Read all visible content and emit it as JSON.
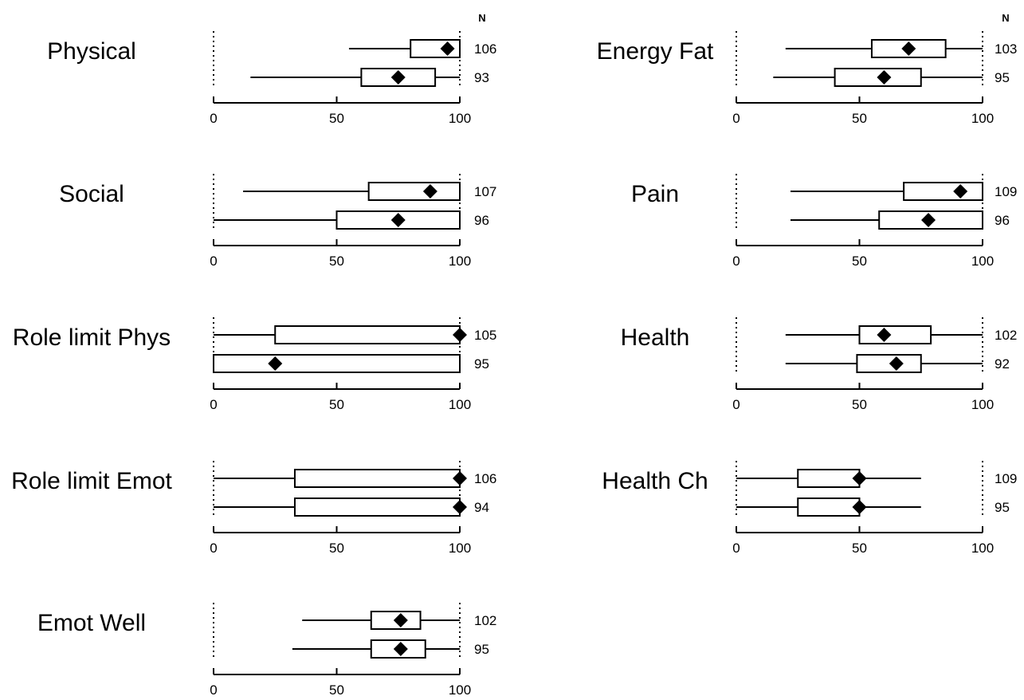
{
  "chart_data": {
    "type": "boxplot",
    "n_header": "N",
    "axis": {
      "range": [
        0,
        100
      ],
      "ticks": [
        "0",
        "50",
        "100"
      ]
    },
    "panels": [
      {
        "label": "Physical",
        "rows": [
          {
            "min": 55,
            "q1": 80,
            "q3": 100,
            "max": 100,
            "mean": 95,
            "n": "106"
          },
          {
            "min": 15,
            "q1": 60,
            "q3": 90,
            "max": 100,
            "mean": 75,
            "n": "93"
          }
        ]
      },
      {
        "label": "Social",
        "rows": [
          {
            "min": 12,
            "q1": 63,
            "q3": 100,
            "max": 100,
            "mean": 88,
            "n": "107"
          },
          {
            "min": 0,
            "q1": 50,
            "q3": 100,
            "max": 100,
            "mean": 75,
            "n": "96"
          }
        ]
      },
      {
        "label": "Role limit Phys",
        "rows": [
          {
            "min": 0,
            "q1": 25,
            "q3": 100,
            "max": 100,
            "mean": 100,
            "n": "105"
          },
          {
            "min": 0,
            "q1": 0,
            "q3": 100,
            "max": 100,
            "mean": 25,
            "n": "95"
          }
        ]
      },
      {
        "label": "Role limit Emot",
        "rows": [
          {
            "min": 0,
            "q1": 33,
            "q3": 100,
            "max": 100,
            "mean": 100,
            "n": "106"
          },
          {
            "min": 0,
            "q1": 33,
            "q3": 100,
            "max": 100,
            "mean": 100,
            "n": "94"
          }
        ]
      },
      {
        "label": "Emot Well",
        "rows": [
          {
            "min": 36,
            "q1": 64,
            "q3": 84,
            "max": 100,
            "mean": 76,
            "n": "102"
          },
          {
            "min": 32,
            "q1": 64,
            "q3": 86,
            "max": 100,
            "mean": 76,
            "n": "95"
          }
        ]
      },
      {
        "label": "Energy Fat",
        "rows": [
          {
            "min": 20,
            "q1": 55,
            "q3": 85,
            "max": 100,
            "mean": 70,
            "n": "103"
          },
          {
            "min": 15,
            "q1": 40,
            "q3": 75,
            "max": 100,
            "mean": 60,
            "n": "95"
          }
        ]
      },
      {
        "label": "Pain",
        "rows": [
          {
            "min": 22,
            "q1": 68,
            "q3": 100,
            "max": 100,
            "mean": 91,
            "n": "109"
          },
          {
            "min": 22,
            "q1": 58,
            "q3": 100,
            "max": 100,
            "mean": 78,
            "n": "96"
          }
        ]
      },
      {
        "label": "Health",
        "rows": [
          {
            "min": 20,
            "q1": 50,
            "q3": 79,
            "max": 100,
            "mean": 60,
            "n": "102"
          },
          {
            "min": 20,
            "q1": 49,
            "q3": 75,
            "max": 100,
            "mean": 65,
            "n": "92"
          }
        ]
      },
      {
        "label": "Health Ch",
        "rows": [
          {
            "min": 0,
            "q1": 25,
            "q3": 50,
            "max": 75,
            "mean": 50,
            "n": "109"
          },
          {
            "min": 0,
            "q1": 25,
            "q3": 50,
            "max": 75,
            "mean": 50,
            "n": "95"
          }
        ]
      }
    ]
  }
}
